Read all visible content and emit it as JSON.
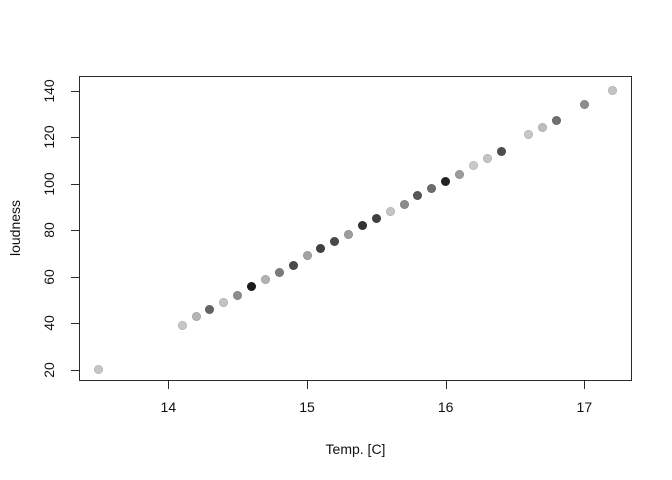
{
  "figure": {
    "background": "#ffffff",
    "box_color": "#2b2b2b",
    "text_color": "#111111"
  },
  "chart_data": {
    "type": "scatter",
    "title": "",
    "xlabel": "Temp. [C]",
    "ylabel": "loudness",
    "marker": "filled-circle",
    "grid": false,
    "legend_position": "none",
    "x_ticks": [
      14,
      15,
      16,
      17
    ],
    "y_ticks": [
      20,
      40,
      60,
      80,
      100,
      120,
      140
    ],
    "xlim": [
      13.35,
      17.35
    ],
    "ylim": [
      15,
      146
    ],
    "x": [
      13.5,
      14.1,
      14.2,
      14.3,
      14.4,
      14.5,
      14.6,
      14.7,
      14.8,
      14.9,
      15.0,
      15.1,
      15.2,
      15.3,
      15.4,
      15.5,
      15.6,
      15.7,
      15.8,
      15.9,
      16.0,
      16.1,
      16.2,
      16.3,
      16.4,
      16.6,
      16.7,
      16.8,
      17.0,
      17.2
    ],
    "y": [
      20,
      39,
      43,
      46,
      49,
      52,
      56,
      59,
      62,
      65,
      69,
      72,
      75,
      78,
      82,
      85,
      88,
      91,
      95,
      98,
      101,
      104,
      108,
      111,
      114,
      121,
      124,
      127,
      134,
      140
    ],
    "point_colors": [
      "#c5c5c5",
      "#c6c6c6",
      "#b4b4b4",
      "#646464",
      "#c3c3c3",
      "#8d8d8d",
      "#1c1c1c",
      "#b1b1b1",
      "#7b7b7b",
      "#4a4a4a",
      "#a3a3a3",
      "#414141",
      "#4a4a4a",
      "#9c9c9c",
      "#333333",
      "#404040",
      "#c4c4c4",
      "#8c8c8c",
      "#575757",
      "#6c6c6c",
      "#232323",
      "#9b9b9b",
      "#c9c9c9",
      "#c5c5c5",
      "#4e4e4e",
      "#c6c6c6",
      "#bebebe",
      "#707070",
      "#8d8d8d",
      "#c3c3c3"
    ]
  }
}
